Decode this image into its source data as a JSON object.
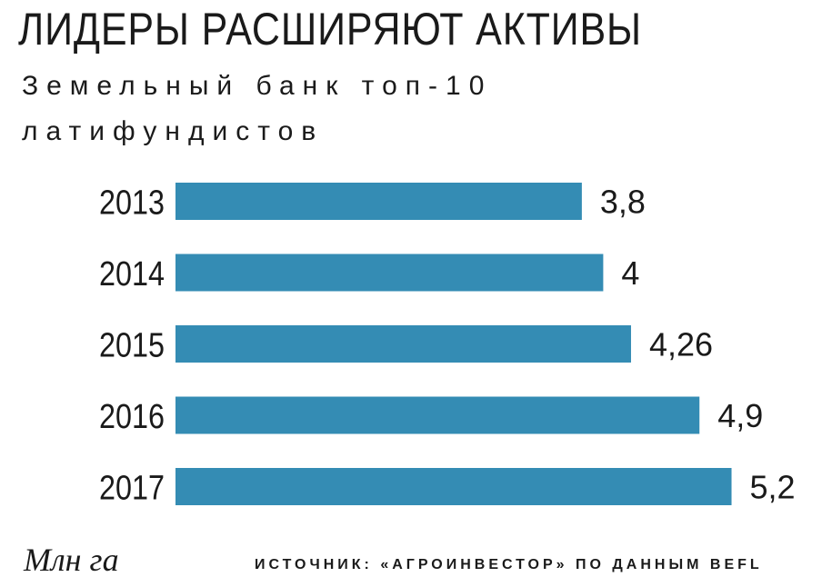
{
  "title": "ЛИДЕРЫ РАСШИРЯЮТ АКТИВЫ",
  "subtitle": "Земельный банк топ-10 латифундистов",
  "unit_label": "Млн га",
  "source": "ИСТОЧНИК: «АГРОИНВЕСТОР» ПО ДАННЫМ BEFL",
  "colors": {
    "bar": "#348cb4",
    "text": "#1a1a1a"
  },
  "chart_data": {
    "type": "bar",
    "orientation": "horizontal",
    "categories": [
      "2013",
      "2014",
      "2015",
      "2016",
      "2017"
    ],
    "values": [
      3.8,
      4,
      4.26,
      4.9,
      5.2
    ],
    "value_labels": [
      "3,8",
      "4",
      "4,26",
      "4,9",
      "5,2"
    ],
    "title": "ЛИДЕРЫ РАСШИРЯЮТ АКТИВЫ",
    "subtitle": "Земельный банк топ-10 латифундистов",
    "unit": "Млн га",
    "grid": false,
    "legend": "none"
  }
}
